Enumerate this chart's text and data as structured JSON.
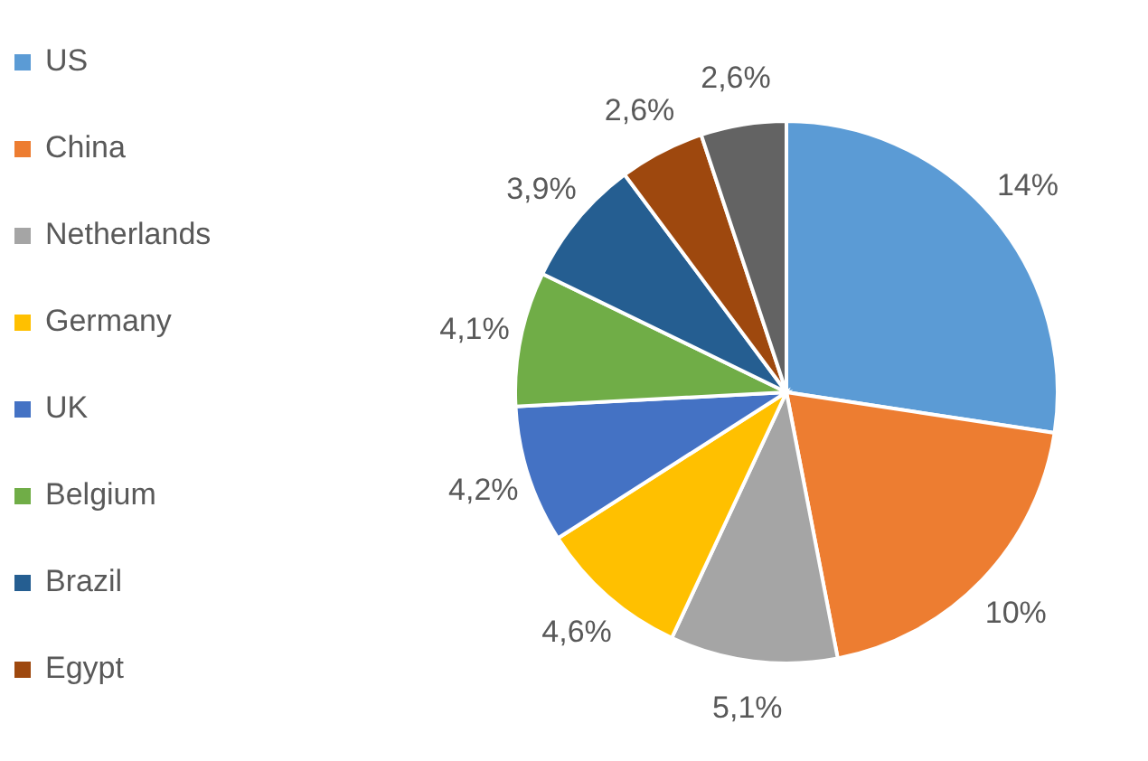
{
  "chart_data": {
    "type": "pie",
    "categories": [
      "US",
      "China",
      "Netherlands",
      "Germany",
      "UK",
      "Belgium",
      "Brazil",
      "Egypt",
      null
    ],
    "values": [
      14,
      10,
      5.1,
      4.6,
      4.2,
      4.1,
      3.9,
      2.6,
      2.6
    ],
    "value_labels": [
      "14%",
      "10%",
      "5,1%",
      "4,6%",
      "4,2%",
      "4,1%",
      "3,9%",
      "2,6%",
      "2,6%"
    ],
    "colors": [
      "#5b9bd5",
      "#ed7d31",
      "#a5a5a5",
      "#ffc000",
      "#4472c4",
      "#70ad47",
      "#255e91",
      "#9e480e",
      "#636363"
    ],
    "legend": "left"
  }
}
